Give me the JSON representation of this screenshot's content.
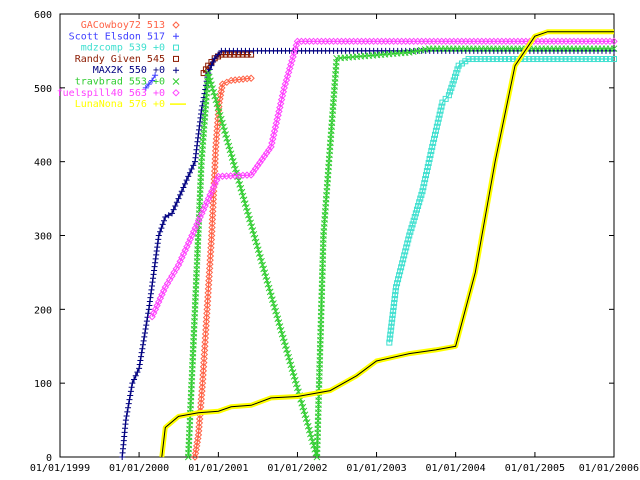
{
  "chart_data": {
    "type": "line",
    "title": "",
    "xlabel": "",
    "ylabel": "",
    "ylim": [
      0,
      600
    ],
    "y_ticks": [
      "0",
      "100",
      "200",
      "300",
      "400",
      "500",
      "600"
    ],
    "x_ticks": [
      "01/01/1999",
      "01/01/2000",
      "01/01/2001",
      "01/01/2002",
      "01/01/2003",
      "01/01/2004",
      "01/01/2005",
      "01/01/2006"
    ],
    "xlim": [
      "1999-01-01",
      "2006-01-01"
    ],
    "grid": false,
    "legend_position": "top-left",
    "series": [
      {
        "name": "GACowboy72 513",
        "color": "#ff6347",
        "marker": "diamond",
        "points": [
          [
            "2000-09-15",
            0
          ],
          [
            "2000-10-01",
            30
          ],
          [
            "2000-10-20",
            100
          ],
          [
            "2000-11-10",
            200
          ],
          [
            "2000-12-01",
            300
          ],
          [
            "2000-12-20",
            420
          ],
          [
            "2001-01-05",
            480
          ],
          [
            "2001-01-20",
            505
          ],
          [
            "2001-03-01",
            510
          ],
          [
            "2001-06-01",
            513
          ]
        ]
      },
      {
        "name": "Scott Elsdon 517",
        "color": "#4040ff",
        "marker": "plus",
        "points": [
          [
            "2000-02-01",
            500
          ],
          [
            "2000-02-15",
            505
          ],
          [
            "2000-03-01",
            510
          ],
          [
            "2000-03-15",
            517
          ]
        ]
      },
      {
        "name": "mdzcomp 539 +0",
        "color": "#40e0d0",
        "marker": "square",
        "points": [
          [
            "2003-03-01",
            155
          ],
          [
            "2003-04-01",
            230
          ],
          [
            "2003-06-01",
            300
          ],
          [
            "2003-08-01",
            360
          ],
          [
            "2003-09-15",
            420
          ],
          [
            "2003-11-01",
            480
          ],
          [
            "2003-12-01",
            490
          ],
          [
            "2004-01-15",
            530
          ],
          [
            "2004-03-01",
            539
          ],
          [
            "2006-01-01",
            539
          ]
        ]
      },
      {
        "name": "Randy Given 545",
        "color": "#8b1a00",
        "marker": "square",
        "points": [
          [
            "2000-10-25",
            520
          ],
          [
            "2000-11-15",
            530
          ],
          [
            "2000-12-15",
            540
          ],
          [
            "2001-01-15",
            545
          ],
          [
            "2001-06-01",
            545
          ]
        ]
      },
      {
        "name": "MAX2K 550 +0",
        "color": "#000080",
        "marker": "plus",
        "points": [
          [
            "1999-10-15",
            0
          ],
          [
            "1999-11-01",
            50
          ],
          [
            "1999-12-01",
            100
          ],
          [
            "2000-01-01",
            120
          ],
          [
            "2000-02-15",
            200
          ],
          [
            "2000-04-01",
            300
          ],
          [
            "2000-05-01",
            325
          ],
          [
            "2000-06-01",
            330
          ],
          [
            "2000-07-01",
            350
          ],
          [
            "2000-08-15",
            380
          ],
          [
            "2000-09-15",
            400
          ],
          [
            "2000-10-15",
            470
          ],
          [
            "2000-11-15",
            520
          ],
          [
            "2000-12-15",
            540
          ],
          [
            "2001-01-15",
            550
          ],
          [
            "2006-01-01",
            550
          ]
        ]
      },
      {
        "name": "travbrad 553 +0",
        "color": "#32cd32",
        "marker": "cross",
        "points": [
          [
            "2000-08-15",
            0
          ],
          [
            "2000-09-15",
            200
          ],
          [
            "2000-10-15",
            400
          ],
          [
            "2000-11-15",
            520
          ],
          [
            "2002-04-01",
            0
          ],
          [
            "2002-05-01",
            300
          ],
          [
            "2002-07-01",
            540
          ],
          [
            "2003-06-01",
            548
          ],
          [
            "2003-09-01",
            553
          ],
          [
            "2006-01-01",
            553
          ]
        ]
      },
      {
        "name": "fuelspill40 563 +0",
        "color": "#ff40ff",
        "marker": "diamond",
        "points": [
          [
            "2000-03-01",
            190
          ],
          [
            "2000-05-01",
            230
          ],
          [
            "2000-07-01",
            260
          ],
          [
            "2000-09-01",
            300
          ],
          [
            "2000-11-01",
            340
          ],
          [
            "2001-01-01",
            380
          ],
          [
            "2001-06-01",
            382
          ],
          [
            "2001-09-01",
            420
          ],
          [
            "2001-11-01",
            500
          ],
          [
            "2002-01-01",
            563
          ],
          [
            "2006-01-01",
            563
          ]
        ]
      },
      {
        "name": "LunaNona 576 +0",
        "color": "#ffff00",
        "marker": "line",
        "points": [
          [
            "2000-04-15",
            0
          ],
          [
            "2000-05-01",
            40
          ],
          [
            "2000-07-01",
            55
          ],
          [
            "2000-10-01",
            60
          ],
          [
            "2001-01-01",
            62
          ],
          [
            "2001-03-01",
            68
          ],
          [
            "2001-06-01",
            70
          ],
          [
            "2001-09-01",
            80
          ],
          [
            "2002-01-01",
            82
          ],
          [
            "2002-06-01",
            90
          ],
          [
            "2002-10-01",
            110
          ],
          [
            "2003-01-01",
            130
          ],
          [
            "2003-06-01",
            140
          ],
          [
            "2003-10-01",
            145
          ],
          [
            "2004-01-01",
            150
          ],
          [
            "2004-04-01",
            250
          ],
          [
            "2004-07-01",
            400
          ],
          [
            "2004-10-01",
            530
          ],
          [
            "2005-01-01",
            570
          ],
          [
            "2005-03-01",
            576
          ],
          [
            "2006-01-01",
            576
          ]
        ]
      }
    ]
  }
}
